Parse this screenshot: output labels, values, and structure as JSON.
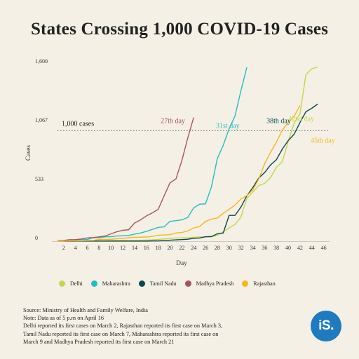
{
  "title": "States Crossing 1,000 COVID-19 Cases",
  "chart_data": {
    "type": "line",
    "title": "States Crossing 1,000 COVID-19 Cases",
    "xlabel": "Day",
    "ylabel": "Cases",
    "xlim": [
      0,
      47
    ],
    "ylim": [
      0,
      1600
    ],
    "x_ticks": [
      2,
      4,
      6,
      8,
      10,
      12,
      14,
      16,
      18,
      20,
      22,
      24,
      26,
      28,
      30,
      32,
      34,
      36,
      38,
      40,
      42,
      44,
      46
    ],
    "y_ticks": [
      {
        "value": 0,
        "label": "0"
      },
      {
        "value": 533,
        "label": "533"
      },
      {
        "value": 1067,
        "label": "1,067"
      },
      {
        "value": 1600,
        "label": "1,600"
      }
    ],
    "reference_line": {
      "value": 1000,
      "label": "1,000 cases"
    },
    "series": [
      {
        "name": "Delhi",
        "color": "#c5d64a",
        "values": [
          [
            1,
            1
          ],
          [
            2,
            1
          ],
          [
            3,
            2
          ],
          [
            4,
            2
          ],
          [
            5,
            3
          ],
          [
            6,
            3
          ],
          [
            7,
            3
          ],
          [
            8,
            5
          ],
          [
            9,
            6
          ],
          [
            10,
            7
          ],
          [
            11,
            7
          ],
          [
            12,
            7
          ],
          [
            13,
            7
          ],
          [
            14,
            7
          ],
          [
            15,
            8
          ],
          [
            16,
            10
          ],
          [
            17,
            12
          ],
          [
            18,
            17
          ],
          [
            19,
            20
          ],
          [
            20,
            26
          ],
          [
            21,
            29
          ],
          [
            22,
            30
          ],
          [
            23,
            31
          ],
          [
            24,
            36
          ],
          [
            25,
            39
          ],
          [
            26,
            39
          ],
          [
            27,
            39
          ],
          [
            28,
            53
          ],
          [
            29,
            86
          ],
          [
            30,
            120
          ],
          [
            31,
            152
          ],
          [
            32,
            219
          ],
          [
            33,
            386
          ],
          [
            34,
            445
          ],
          [
            35,
            503
          ],
          [
            36,
            523
          ],
          [
            37,
            576
          ],
          [
            38,
            669
          ],
          [
            39,
            720
          ],
          [
            40,
            903
          ],
          [
            41,
            1069
          ],
          [
            42,
            1154
          ],
          [
            43,
            1510
          ],
          [
            44,
            1561
          ],
          [
            45,
            1578
          ]
        ]
      },
      {
        "name": "Maharashtra",
        "color": "#27bdbd",
        "values": [
          [
            1,
            2
          ],
          [
            2,
            5
          ],
          [
            3,
            5
          ],
          [
            4,
            11
          ],
          [
            5,
            14
          ],
          [
            6,
            16
          ],
          [
            7,
            32
          ],
          [
            8,
            32
          ],
          [
            9,
            39
          ],
          [
            10,
            41
          ],
          [
            11,
            47
          ],
          [
            12,
            49
          ],
          [
            13,
            52
          ],
          [
            14,
            64
          ],
          [
            15,
            74
          ],
          [
            16,
            89
          ],
          [
            17,
            107
          ],
          [
            18,
            125
          ],
          [
            19,
            130
          ],
          [
            20,
            180
          ],
          [
            21,
            186
          ],
          [
            22,
            193
          ],
          [
            23,
            215
          ],
          [
            24,
            302
          ],
          [
            25,
            335
          ],
          [
            26,
            338
          ],
          [
            27,
            490
          ],
          [
            28,
            748
          ],
          [
            29,
            868
          ],
          [
            30,
            1018
          ],
          [
            31,
            1135
          ],
          [
            32,
            1364
          ],
          [
            33,
            1574
          ]
        ]
      },
      {
        "name": "Tamil Nadu",
        "color": "#0c4750",
        "values": [
          [
            1,
            1
          ],
          [
            2,
            1
          ],
          [
            3,
            1
          ],
          [
            4,
            1
          ],
          [
            5,
            1
          ],
          [
            6,
            1
          ],
          [
            7,
            1
          ],
          [
            8,
            1
          ],
          [
            9,
            1
          ],
          [
            10,
            1
          ],
          [
            11,
            1
          ],
          [
            12,
            1
          ],
          [
            13,
            1
          ],
          [
            14,
            1
          ],
          [
            15,
            1
          ],
          [
            16,
            1
          ],
          [
            17,
            3
          ],
          [
            18,
            3
          ],
          [
            19,
            6
          ],
          [
            20,
            9
          ],
          [
            21,
            12
          ],
          [
            22,
            15
          ],
          [
            23,
            18
          ],
          [
            24,
            26
          ],
          [
            25,
            29
          ],
          [
            26,
            40
          ],
          [
            27,
            42
          ],
          [
            28,
            67
          ],
          [
            29,
            74
          ],
          [
            30,
            234
          ],
          [
            31,
            234
          ],
          [
            32,
            309
          ],
          [
            33,
            411
          ],
          [
            34,
            485
          ],
          [
            35,
            571
          ],
          [
            36,
            621
          ],
          [
            37,
            690
          ],
          [
            38,
            738
          ],
          [
            39,
            834
          ],
          [
            40,
            911
          ],
          [
            41,
            969
          ],
          [
            42,
            1075
          ],
          [
            43,
            1173
          ],
          [
            44,
            1204
          ],
          [
            45,
            1242
          ]
        ]
      },
      {
        "name": "Madhya Pradesh",
        "color": "#a8535c",
        "values": [
          [
            1,
            4
          ],
          [
            2,
            7
          ],
          [
            3,
            14
          ],
          [
            4,
            15
          ],
          [
            5,
            20
          ],
          [
            6,
            30
          ],
          [
            7,
            33
          ],
          [
            8,
            39
          ],
          [
            9,
            47
          ],
          [
            10,
            66
          ],
          [
            11,
            86
          ],
          [
            12,
            99
          ],
          [
            13,
            104
          ],
          [
            14,
            165
          ],
          [
            15,
            193
          ],
          [
            16,
            229
          ],
          [
            17,
            256
          ],
          [
            18,
            289
          ],
          [
            19,
            411
          ],
          [
            20,
            529
          ],
          [
            21,
            564
          ],
          [
            22,
            730
          ],
          [
            23,
            935
          ],
          [
            24,
            1120
          ]
        ]
      },
      {
        "name": "Rajasthan",
        "color": "#f4b81c",
        "values": [
          [
            1,
            1
          ],
          [
            2,
            2
          ],
          [
            3,
            4
          ],
          [
            4,
            4
          ],
          [
            5,
            4
          ],
          [
            6,
            7
          ],
          [
            7,
            7
          ],
          [
            8,
            17
          ],
          [
            9,
            17
          ],
          [
            10,
            17
          ],
          [
            11,
            23
          ],
          [
            12,
            24
          ],
          [
            13,
            32
          ],
          [
            14,
            36
          ],
          [
            15,
            36
          ],
          [
            16,
            38
          ],
          [
            17,
            43
          ],
          [
            18,
            54
          ],
          [
            19,
            57
          ],
          [
            20,
            59
          ],
          [
            21,
            74
          ],
          [
            22,
            79
          ],
          [
            23,
            93
          ],
          [
            24,
            120
          ],
          [
            25,
            133
          ],
          [
            26,
            179
          ],
          [
            27,
            200
          ],
          [
            28,
            210
          ],
          [
            29,
            253
          ],
          [
            30,
            288
          ],
          [
            31,
            328
          ],
          [
            32,
            383
          ],
          [
            33,
            413
          ],
          [
            34,
            463
          ],
          [
            35,
            561
          ],
          [
            36,
            700
          ],
          [
            37,
            804
          ],
          [
            38,
            897
          ],
          [
            39,
            1005
          ],
          [
            40,
            1076
          ],
          [
            41,
            1131
          ],
          [
            42,
            1229
          ]
        ]
      }
    ],
    "annotations": [
      {
        "series": "Madhya Pradesh",
        "text": "27th day"
      },
      {
        "series": "Maharashtra",
        "text": "31st day"
      },
      {
        "series": "Tamil Nadu",
        "text": "38th day"
      },
      {
        "series": "Delhi",
        "text": "42nd day"
      },
      {
        "series": "Rajasthan",
        "text": "45th day"
      }
    ]
  },
  "legend_items": [
    "Delhi",
    "Maharashtra",
    "Tamil Nadu",
    "Madhya Pradesh",
    "Rajasthan"
  ],
  "notes": {
    "line1": "Source: Ministry of Health and Family Welfare, India",
    "line2": "Note: Data as of 5 p.m on April 16",
    "line3": "Delhi reported its first cases on March 2, Rajasthan reported its first case on March 3,",
    "line4": "Tamil Nadu reported its first case on March 7, Maharashtra reported its first case on",
    "line5": "March 9 and Madhya Pradesh reported its first case on March 21"
  },
  "logo_text": "iS."
}
